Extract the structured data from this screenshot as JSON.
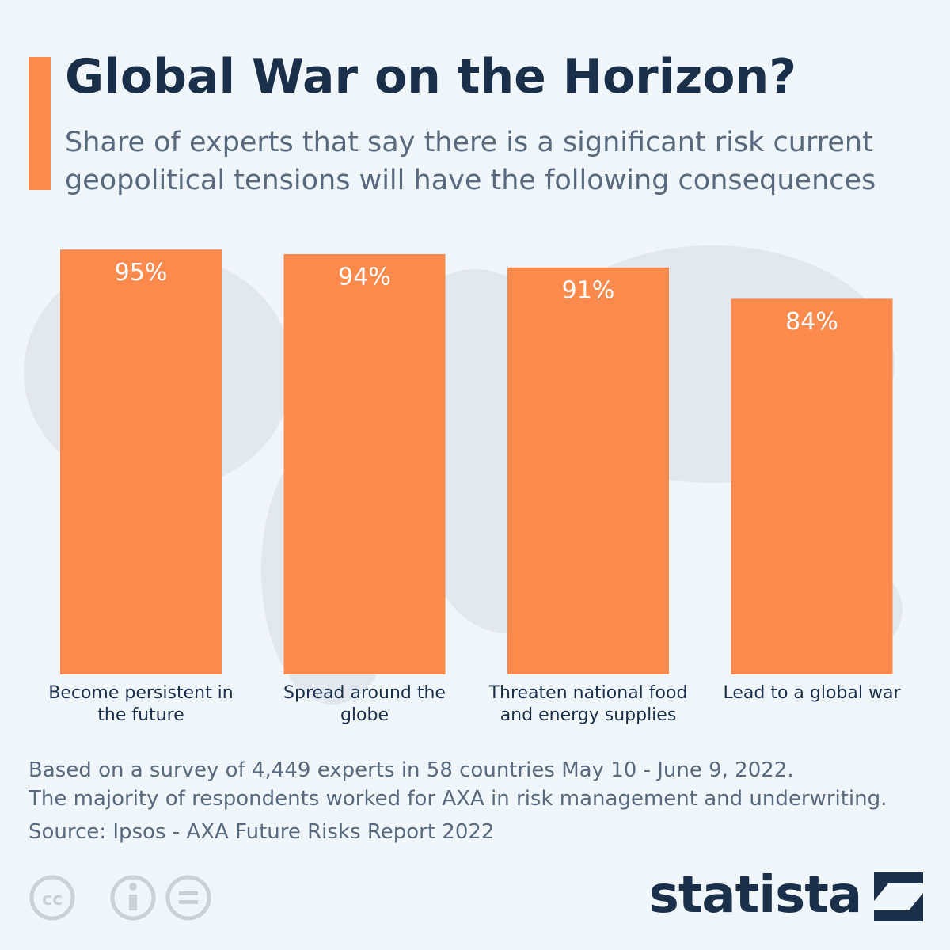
{
  "title": "Global War on the Horizon?",
  "subtitle": "Share of experts that say there is a significant risk current geopolitical tensions will have the following consequences",
  "notes": [
    "Based on a survey of 4,449 experts in 58 countries May 10 - June 9, 2022.",
    "The majority of respondents worked for AXA in risk management and underwriting."
  ],
  "source": "Source: Ipsos - AXA Future Risks Report 2022",
  "brand": "statista",
  "chart_data": {
    "type": "bar",
    "categories": [
      "Become persistent in the future",
      "Spread around the globe",
      "Threaten national food and energy supplies",
      "Lead to a global war"
    ],
    "values": [
      95,
      94,
      91,
      84
    ],
    "value_labels": [
      "95%",
      "94%",
      "91%",
      "84%"
    ],
    "color": "#fd8a4d",
    "ylim": [
      0,
      100
    ]
  }
}
